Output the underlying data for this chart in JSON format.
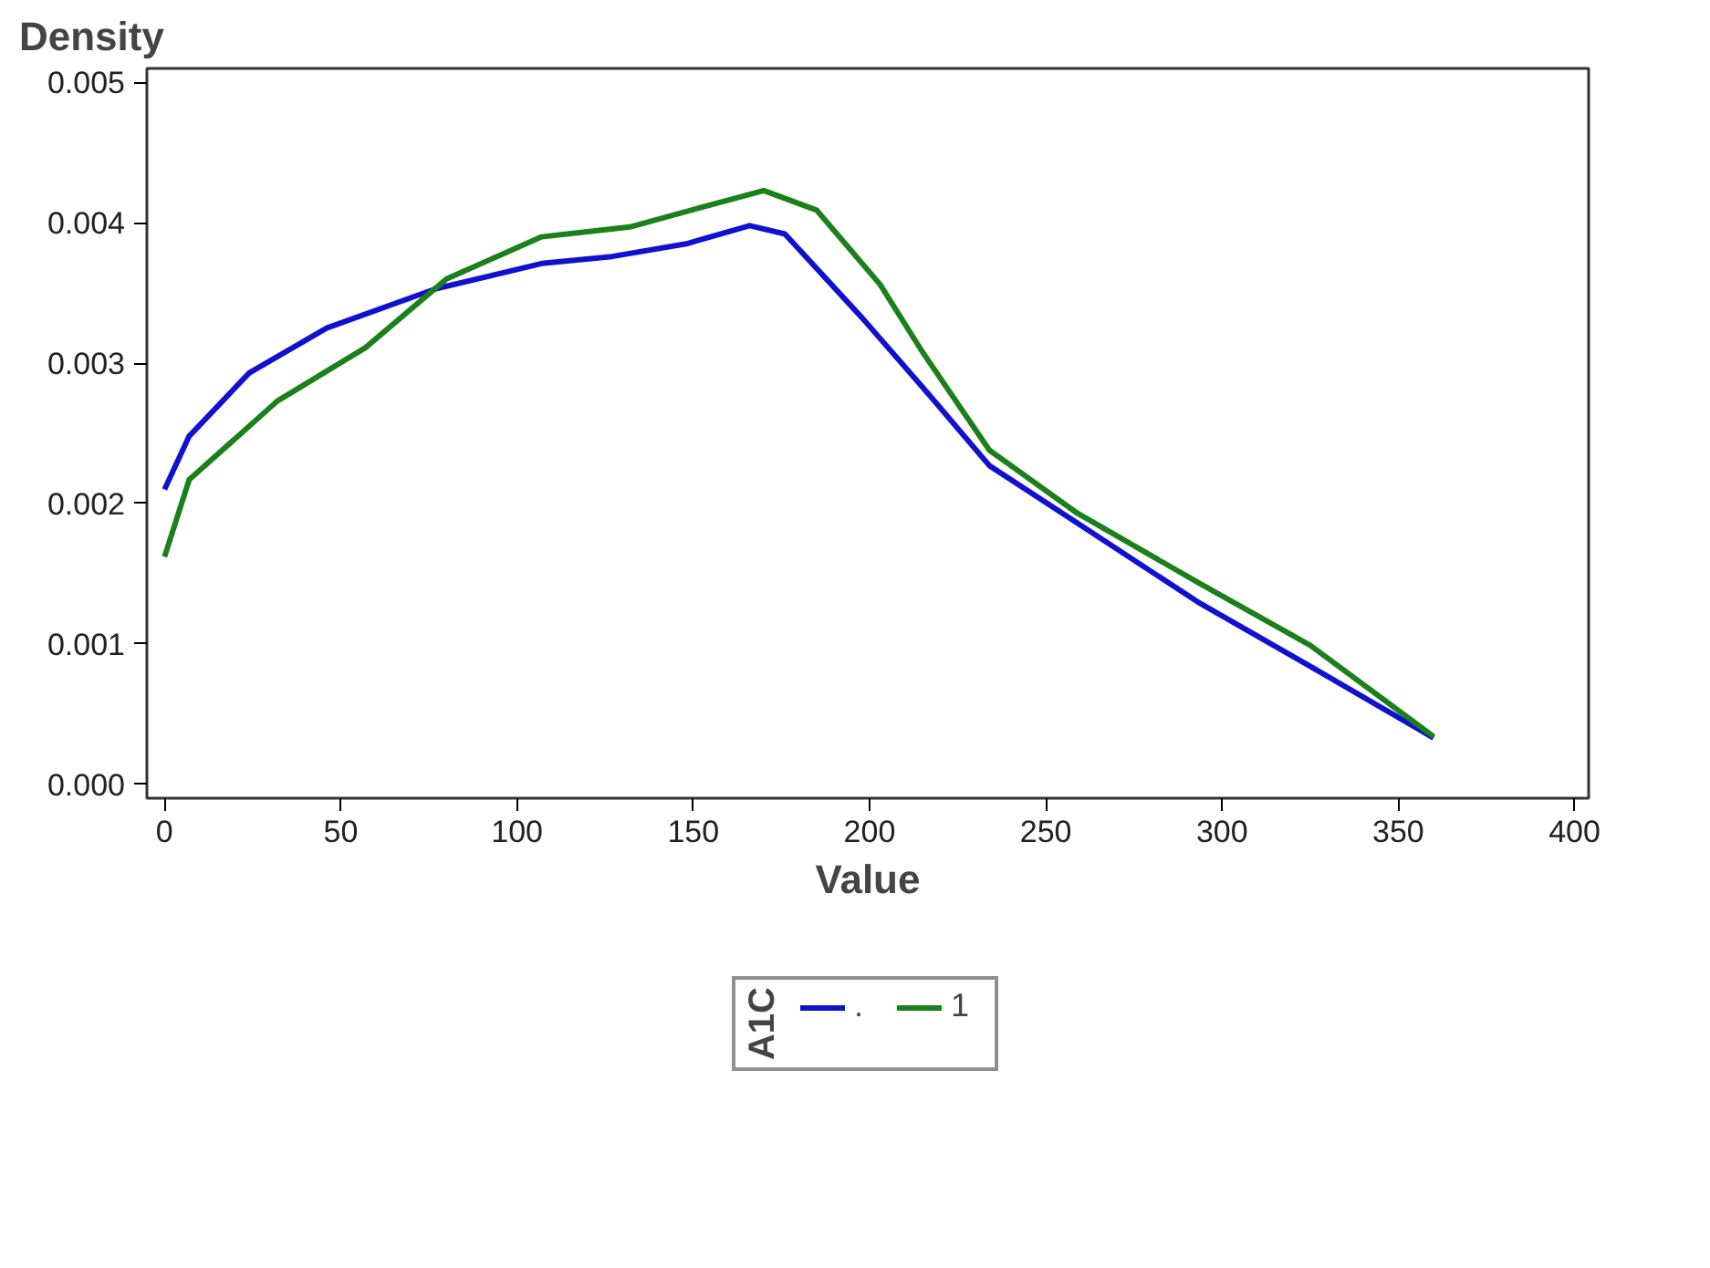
{
  "chart_data": {
    "type": "line",
    "xlabel": "Value",
    "ylabel": "Density",
    "legend_title": "A1C",
    "legend": "bottom",
    "grid": false,
    "marker": "none",
    "line_style": "solid",
    "xlim": [
      -5,
      404
    ],
    "ylim": [
      -0.0001,
      0.0051
    ],
    "xticks": [
      0,
      50,
      100,
      150,
      200,
      250,
      300,
      350,
      400
    ],
    "yticks": [
      {
        "value": 0,
        "label": "0.000"
      },
      0.001,
      0.002,
      0.003,
      0.004,
      0.005
    ],
    "series": [
      {
        "name": ".",
        "color": "#1010d0",
        "x": [
          0,
          7,
          24,
          46,
          77,
          107,
          127,
          148,
          166,
          176,
          198,
          215,
          234,
          259,
          293,
          325,
          360
        ],
        "values": [
          0.0021,
          0.00248,
          0.00293,
          0.00325,
          0.00353,
          0.00371,
          0.00376,
          0.00385,
          0.00398,
          0.00392,
          0.00332,
          0.00283,
          0.00227,
          0.00186,
          0.0013,
          0.00084,
          0.00033
        ]
      },
      {
        "name": "1",
        "color": "#1a801a",
        "x": [
          0,
          7,
          32,
          57,
          80,
          107,
          132,
          148,
          170,
          185,
          203,
          215,
          234,
          259,
          293,
          325,
          360
        ],
        "values": [
          0.00162,
          0.00217,
          0.00273,
          0.00311,
          0.0036,
          0.0039,
          0.00397,
          0.00408,
          0.00423,
          0.00409,
          0.00356,
          0.00308,
          0.00238,
          0.00193,
          0.00144,
          0.00099,
          0.00034
        ]
      }
    ]
  }
}
